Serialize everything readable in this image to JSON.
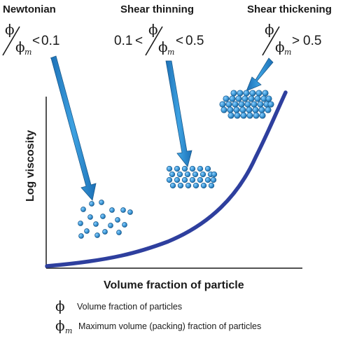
{
  "regimes": [
    {
      "title": "Newtonian",
      "prefix": "",
      "op": "<",
      "threshold": "0.1"
    },
    {
      "title": "Shear thinning",
      "prefix": "0.1",
      "op1": "<",
      "op": "<",
      "threshold": "0.5"
    },
    {
      "title": "Shear thickening",
      "prefix": "",
      "op": ">",
      "threshold": "0.5"
    }
  ],
  "ratio": {
    "numerator": "ϕ",
    "denominator": "ϕ",
    "subscript": "m"
  },
  "axes": {
    "x_label": "Volume fraction of particle",
    "y_label": "Log viscosity"
  },
  "legend": [
    {
      "symbol": "ϕ",
      "subscript": "",
      "text": "Volume fraction of particles"
    },
    {
      "symbol": "ϕ",
      "subscript": "m",
      "text": "Maximum volume (packing) fraction of particles"
    }
  ],
  "colors": {
    "curve": "#2e3f9e",
    "arrow": "#2a8ad0",
    "particle_fill": "#3d9ad8",
    "particle_stroke": "#1b5a8c",
    "axis": "#1a1a1a"
  }
}
